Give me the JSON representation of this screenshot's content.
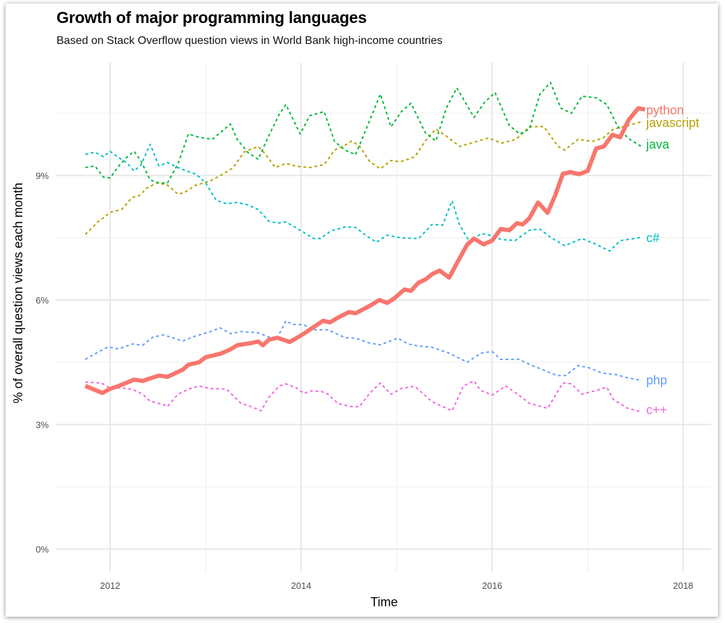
{
  "chart_data": {
    "type": "line",
    "title": "Growth of major programming languages",
    "subtitle": "Based on Stack Overflow question views in World Bank high-income countries",
    "xlabel": "Time",
    "ylabel": "% of overall question views each month",
    "xlim": [
      2011.4,
      2018.3
    ],
    "ylim": [
      -0.25,
      11.5
    ],
    "x_ticks": [
      2012,
      2014,
      2016,
      2018
    ],
    "x_tick_labels": [
      "2012",
      "2014",
      "2016",
      "2018"
    ],
    "x_minor_gridlines": [
      2013,
      2015,
      2017
    ],
    "y_ticks": [
      0,
      3,
      6,
      9
    ],
    "y_tick_labels": [
      "0%",
      "3%",
      "6%",
      "9%"
    ],
    "y_minor_gridlines": [
      1.5,
      4.5,
      7.5,
      10.5
    ],
    "grid": true,
    "legend": "direct labels at right end of each line",
    "series": [
      {
        "name": "python",
        "color": "#F8766D",
        "style": "solid-thick",
        "x": [
          2011.74,
          2011.92,
          2012.0,
          2012.09,
          2012.25,
          2012.34,
          2012.51,
          2012.6,
          2012.76,
          2012.82,
          2012.93,
          2013.0,
          2013.16,
          2013.26,
          2013.33,
          2013.47,
          2013.55,
          2013.6,
          2013.66,
          2013.75,
          2013.88,
          2013.95,
          2014.03,
          2014.12,
          2014.23,
          2014.3,
          2014.39,
          2014.5,
          2014.57,
          2014.72,
          2014.82,
          2014.9,
          2014.97,
          2015.08,
          2015.15,
          2015.23,
          2015.3,
          2015.37,
          2015.45,
          2015.55,
          2015.66,
          2015.74,
          2015.81,
          2015.91,
          2016.0,
          2016.09,
          2016.18,
          2016.26,
          2016.32,
          2016.39,
          2016.48,
          2016.58,
          2016.66,
          2016.74,
          2016.82,
          2016.91,
          2017.0,
          2017.09,
          2017.17,
          2017.26,
          2017.34,
          2017.43,
          2017.53,
          2017.6
        ],
        "values": [
          3.93,
          3.76,
          3.86,
          3.93,
          4.08,
          4.05,
          4.18,
          4.15,
          4.32,
          4.44,
          4.5,
          4.62,
          4.71,
          4.81,
          4.91,
          4.96,
          5.0,
          4.91,
          5.04,
          5.09,
          4.99,
          5.08,
          5.19,
          5.33,
          5.5,
          5.46,
          5.58,
          5.71,
          5.68,
          5.86,
          6.0,
          5.93,
          6.03,
          6.25,
          6.22,
          6.42,
          6.49,
          6.62,
          6.71,
          6.54,
          7.01,
          7.34,
          7.48,
          7.34,
          7.43,
          7.71,
          7.68,
          7.85,
          7.82,
          7.97,
          8.35,
          8.1,
          8.52,
          9.04,
          9.08,
          9.03,
          9.11,
          9.65,
          9.7,
          9.98,
          9.92,
          10.34,
          10.62,
          10.59
        ]
      },
      {
        "name": "javascript",
        "color": "#B79F00",
        "style": "dashed",
        "x": [
          2011.74,
          2011.87,
          2012.01,
          2012.12,
          2012.23,
          2012.31,
          2012.38,
          2012.49,
          2012.6,
          2012.71,
          2012.78,
          2012.89,
          2013.04,
          2013.18,
          2013.29,
          2013.4,
          2013.55,
          2013.62,
          2013.73,
          2013.84,
          2013.95,
          2014.09,
          2014.24,
          2014.35,
          2014.46,
          2014.53,
          2014.61,
          2014.72,
          2014.83,
          2014.94,
          2015.04,
          2015.19,
          2015.3,
          2015.41,
          2015.52,
          2015.66,
          2015.81,
          2015.96,
          2016.1,
          2016.25,
          2016.39,
          2016.54,
          2016.69,
          2016.76,
          2016.9,
          2017.05,
          2017.16,
          2017.27,
          2017.42,
          2017.56
        ],
        "values": [
          7.58,
          7.88,
          8.12,
          8.18,
          8.47,
          8.52,
          8.69,
          8.82,
          8.77,
          8.55,
          8.59,
          8.76,
          8.86,
          9.03,
          9.19,
          9.56,
          9.7,
          9.53,
          9.19,
          9.29,
          9.22,
          9.19,
          9.26,
          9.61,
          9.73,
          9.83,
          9.71,
          9.33,
          9.16,
          9.36,
          9.33,
          9.45,
          9.83,
          10.12,
          9.95,
          9.7,
          9.8,
          9.9,
          9.78,
          9.87,
          10.17,
          10.18,
          9.7,
          9.61,
          9.87,
          9.82,
          9.9,
          10.12,
          10.2,
          10.29
        ]
      },
      {
        "name": "java",
        "color": "#00BA38",
        "style": "dashed",
        "x": [
          2011.74,
          2011.84,
          2011.93,
          2012.0,
          2012.09,
          2012.18,
          2012.25,
          2012.32,
          2012.42,
          2012.51,
          2012.6,
          2012.71,
          2012.82,
          2012.93,
          2013.07,
          2013.26,
          2013.33,
          2013.44,
          2013.55,
          2013.66,
          2013.77,
          2013.84,
          2013.99,
          2014.09,
          2014.24,
          2014.35,
          2014.46,
          2014.57,
          2014.72,
          2014.83,
          2014.94,
          2015.05,
          2015.15,
          2015.3,
          2015.41,
          2015.52,
          2015.63,
          2015.81,
          2015.92,
          2016.03,
          2016.18,
          2016.29,
          2016.39,
          2016.5,
          2016.61,
          2016.72,
          2016.83,
          2016.94,
          2017.09,
          2017.2,
          2017.31,
          2017.42,
          2017.56
        ],
        "values": [
          9.19,
          9.23,
          8.96,
          8.94,
          9.23,
          9.45,
          9.58,
          9.36,
          8.89,
          8.82,
          8.82,
          9.28,
          10.0,
          9.92,
          9.87,
          10.24,
          9.87,
          9.56,
          9.39,
          9.95,
          10.47,
          10.71,
          10.0,
          10.44,
          10.54,
          9.82,
          9.61,
          9.5,
          10.34,
          10.96,
          10.17,
          10.54,
          10.74,
          10.03,
          9.83,
          10.62,
          11.11,
          10.4,
          10.76,
          11.0,
          10.2,
          10.0,
          10.12,
          10.96,
          11.24,
          10.62,
          10.5,
          10.91,
          10.87,
          10.71,
          10.2,
          9.9,
          9.7
        ]
      },
      {
        "name": "c#",
        "color": "#00BFC4",
        "style": "dashed",
        "x": [
          2011.74,
          2011.84,
          2011.93,
          2012.0,
          2012.09,
          2012.18,
          2012.25,
          2012.32,
          2012.42,
          2012.51,
          2012.6,
          2012.71,
          2012.82,
          2012.9,
          2013.0,
          2013.11,
          2013.22,
          2013.33,
          2013.44,
          2013.55,
          2013.66,
          2013.75,
          2013.84,
          2013.99,
          2014.13,
          2014.2,
          2014.31,
          2014.46,
          2014.57,
          2014.68,
          2014.79,
          2014.9,
          2015.04,
          2015.23,
          2015.37,
          2015.48,
          2015.58,
          2015.66,
          2015.77,
          2015.88,
          2016.0,
          2016.09,
          2016.24,
          2016.39,
          2016.5,
          2016.61,
          2016.76,
          2016.94,
          2017.09,
          2017.23,
          2017.34,
          2017.49,
          2017.56
        ],
        "values": [
          9.51,
          9.56,
          9.45,
          9.58,
          9.43,
          9.29,
          9.11,
          9.24,
          9.75,
          9.23,
          9.31,
          9.19,
          9.09,
          9.03,
          8.82,
          8.4,
          8.32,
          8.35,
          8.29,
          8.18,
          7.9,
          7.85,
          7.88,
          7.68,
          7.48,
          7.48,
          7.66,
          7.76,
          7.75,
          7.55,
          7.39,
          7.56,
          7.5,
          7.48,
          7.82,
          7.8,
          8.39,
          7.8,
          7.38,
          7.6,
          7.55,
          7.46,
          7.43,
          7.68,
          7.71,
          7.51,
          7.31,
          7.48,
          7.34,
          7.18,
          7.43,
          7.48,
          7.51
        ]
      },
      {
        "name": "php",
        "color": "#619CFF",
        "style": "dashed",
        "x": [
          2011.74,
          2011.87,
          2011.98,
          2012.09,
          2012.23,
          2012.34,
          2012.45,
          2012.56,
          2012.76,
          2012.89,
          2013.04,
          2013.15,
          2013.26,
          2013.37,
          2013.55,
          2013.74,
          2013.84,
          2013.91,
          2014.02,
          2014.13,
          2014.28,
          2014.46,
          2014.57,
          2014.72,
          2014.83,
          2015.01,
          2015.12,
          2015.23,
          2015.37,
          2015.55,
          2015.74,
          2015.88,
          2016.0,
          2016.09,
          2016.28,
          2016.39,
          2016.53,
          2016.68,
          2016.77,
          2016.9,
          2017.01,
          2017.15,
          2017.3,
          2017.41,
          2017.54
        ],
        "values": [
          4.57,
          4.74,
          4.87,
          4.82,
          4.94,
          4.91,
          5.11,
          5.16,
          5.01,
          5.13,
          5.23,
          5.33,
          5.19,
          5.24,
          5.21,
          5.04,
          5.5,
          5.41,
          5.41,
          5.28,
          5.28,
          5.09,
          5.08,
          4.96,
          4.92,
          5.08,
          4.94,
          4.89,
          4.86,
          4.72,
          4.5,
          4.72,
          4.76,
          4.57,
          4.57,
          4.45,
          4.32,
          4.18,
          4.18,
          4.42,
          4.37,
          4.24,
          4.2,
          4.13,
          4.07
        ]
      },
      {
        "name": "c++",
        "color": "#F564E3",
        "style": "dashed",
        "x": [
          2011.74,
          2011.91,
          2012.0,
          2012.12,
          2012.23,
          2012.34,
          2012.42,
          2012.56,
          2012.6,
          2012.71,
          2012.82,
          2012.93,
          2013.04,
          2013.22,
          2013.37,
          2013.48,
          2013.58,
          2013.66,
          2013.77,
          2013.84,
          2013.95,
          2014.03,
          2014.1,
          2014.21,
          2014.28,
          2014.39,
          2014.53,
          2014.61,
          2014.72,
          2014.83,
          2014.94,
          2015.05,
          2015.19,
          2015.37,
          2015.58,
          2015.7,
          2015.81,
          2015.88,
          2016.0,
          2016.14,
          2016.25,
          2016.39,
          2016.58,
          2016.74,
          2016.83,
          2016.94,
          2017.09,
          2017.2,
          2017.27,
          2017.42,
          2017.56
        ],
        "values": [
          4.02,
          4.0,
          3.87,
          3.88,
          3.85,
          3.73,
          3.56,
          3.48,
          3.43,
          3.73,
          3.85,
          3.93,
          3.87,
          3.85,
          3.51,
          3.43,
          3.33,
          3.65,
          3.93,
          3.98,
          3.88,
          3.75,
          3.81,
          3.8,
          3.73,
          3.5,
          3.43,
          3.43,
          3.76,
          4.0,
          3.73,
          3.87,
          3.92,
          3.55,
          3.33,
          3.93,
          4.05,
          3.82,
          3.71,
          3.93,
          3.76,
          3.51,
          3.39,
          4.0,
          3.98,
          3.73,
          3.82,
          3.9,
          3.6,
          3.39,
          3.31
        ]
      }
    ],
    "labels": [
      {
        "series": "python",
        "text": "python",
        "color": "#F8766D",
        "y": 10.57
      },
      {
        "series": "javascript",
        "text": "javascript",
        "color": "#B79F00",
        "y": 10.27
      },
      {
        "series": "java",
        "text": "java",
        "color": "#00BA38",
        "y": 9.75
      },
      {
        "series": "c#",
        "text": "c#",
        "color": "#00BFC4",
        "y": 7.5
      },
      {
        "series": "php",
        "text": "php",
        "color": "#619CFF",
        "y": 4.07
      },
      {
        "series": "c++",
        "text": "c++",
        "color": "#F564E3",
        "y": 3.35
      }
    ]
  }
}
